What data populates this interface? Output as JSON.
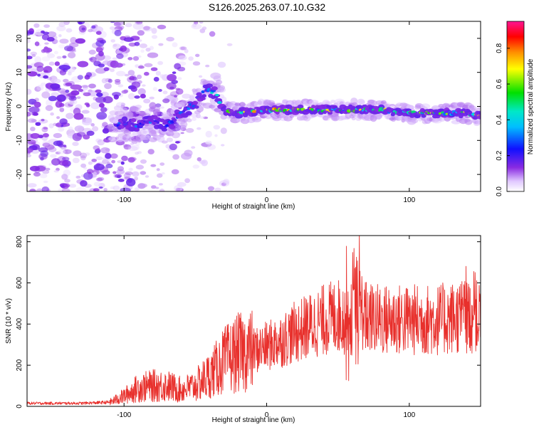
{
  "title": "S126.2025.263.07.10.G32",
  "colors": {
    "snr_line": "#e8302c",
    "axes": "#000000",
    "background": "#ffffff"
  },
  "chart_data": [
    {
      "type": "heatmap",
      "xlabel": "Height of straight line (km)",
      "ylabel": "Frequency (Hz)",
      "xlim": [
        -168,
        150
      ],
      "ylim": [
        -25,
        25
      ],
      "xticks": [
        -100,
        0,
        100
      ],
      "yticks": [
        -20,
        -10,
        0,
        10,
        20
      ],
      "colorbar": {
        "label": "Normalized spectral amplitude",
        "range": [
          0.0,
          0.95
        ],
        "ticks": [
          0.0,
          0.2,
          0.4,
          0.6,
          0.8
        ],
        "colormap": "rainbow (white-violet-blue-cyan-green-yellow-red-magenta)"
      },
      "ridge_trace": {
        "description": "Dominant frequency ridge vs. height",
        "x": [
          -100,
          -90,
          -80,
          -70,
          -60,
          -50,
          -42,
          -36,
          -30,
          -20,
          0,
          20,
          40,
          60,
          80,
          100,
          120,
          140,
          150
        ],
        "y": [
          -5,
          -6,
          -4,
          -6,
          -2,
          1,
          5,
          4,
          -1,
          -2,
          -1,
          -1,
          -1,
          -1,
          -1,
          -2,
          -2,
          -2,
          -3
        ]
      }
    },
    {
      "type": "line",
      "xlabel": "Height of straight line (km)",
      "ylabel": "SNR (10 * v/v)",
      "xlim": [
        -168,
        150
      ],
      "ylim": [
        0,
        830
      ],
      "xticks": [
        -100,
        0,
        100
      ],
      "yticks": [
        0,
        200,
        400,
        600,
        800
      ],
      "series": [
        {
          "name": "SNR",
          "x": [
            -168,
            -130,
            -110,
            -100,
            -90,
            -80,
            -70,
            -60,
            -50,
            -40,
            -30,
            -20,
            -10,
            0,
            10,
            20,
            30,
            40,
            50,
            60,
            63,
            70,
            80,
            90,
            100,
            110,
            120,
            130,
            140,
            150
          ],
          "y": [
            15,
            15,
            20,
            50,
            90,
            100,
            100,
            80,
            100,
            150,
            220,
            260,
            270,
            290,
            320,
            360,
            390,
            420,
            440,
            420,
            520,
            430,
            420,
            420,
            420,
            420,
            420,
            430,
            440,
            430
          ]
        }
      ]
    }
  ]
}
